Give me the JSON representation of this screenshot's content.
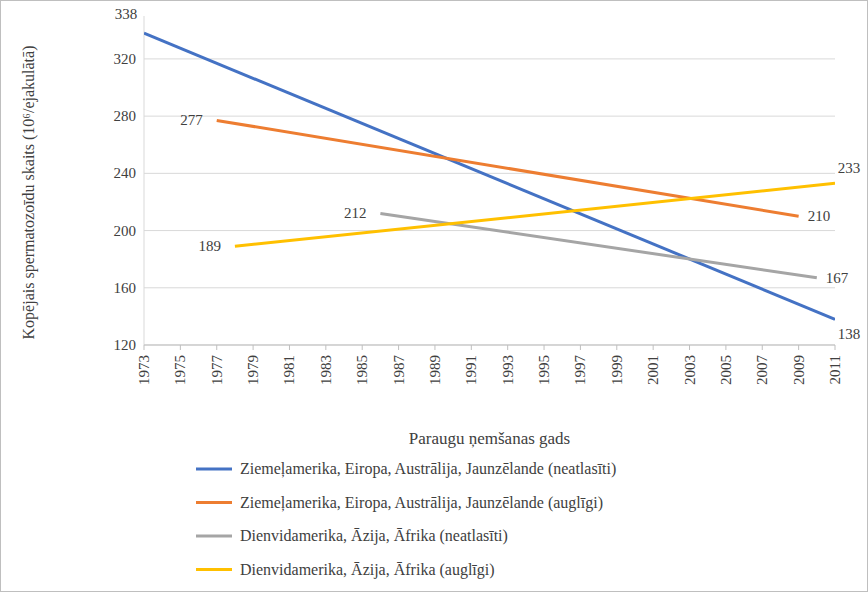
{
  "chart_data": {
    "type": "line",
    "x_label": "Paraugu ņemšanas gads",
    "y_label": "Kopējais spermatozoīdu skaits (10⁶/ejakulātā)",
    "xlim": [
      1973,
      2011
    ],
    "xticks": [
      1973,
      1975,
      1977,
      1979,
      1981,
      1983,
      1985,
      1987,
      1989,
      1991,
      1993,
      1995,
      1997,
      1999,
      2001,
      2003,
      2005,
      2007,
      2009,
      2011
    ],
    "ylim": [
      120,
      350
    ],
    "yticks": [
      120,
      160,
      200,
      240,
      280,
      320
    ],
    "grid": true,
    "legend": "bottom",
    "data_labels": true,
    "series": [
      {
        "name": "Ziemeļamerika, Eiropa, Austrālija, Jaunzēlande (neatlasīti)",
        "color": "#4472c4",
        "x": [
          1973,
          2011
        ],
        "values": [
          338,
          138
        ]
      },
      {
        "name": "Ziemeļamerika, Eiropa, Austrālija, Jaunzēlande (auglīgi)",
        "color": "#ed7d31",
        "x": [
          1977,
          2009
        ],
        "values": [
          277,
          210
        ]
      },
      {
        "name": "Dienvidamerika, Āzija, Āfrika (neatlasīti)",
        "color": "#a5a5a5",
        "x": [
          1986,
          2010
        ],
        "values": [
          212,
          167
        ]
      },
      {
        "name": "Dienvidamerika, Āzija, Āfrika (auglīgi)",
        "color": "#ffc000",
        "x": [
          1978,
          2011
        ],
        "values": [
          189,
          233
        ]
      }
    ]
  }
}
